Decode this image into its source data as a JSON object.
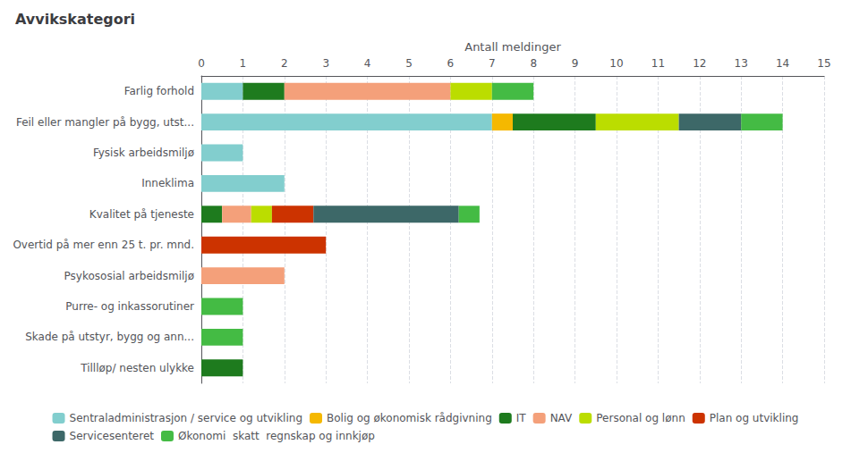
{
  "chart_data": {
    "type": "bar",
    "orientation": "horizontal",
    "stacked": true,
    "title": "Avvikskategori",
    "xlabel": "Antall meldinger",
    "categories": [
      "Farlig forhold",
      "Feil eller mangler på bygg, utst...",
      "Fysisk arbeidsmiljø",
      "Inneklima",
      "Kvalitet på tjeneste",
      "Overtid på mer enn 25 t. pr. mnd.",
      "Psykososial arbeidsmiljø",
      "Purre- og inkassorutiner",
      "Skade på utstyr, bygg og ann...",
      "Tillløp/ nesten ulykke"
    ],
    "series": [
      {
        "name": "Sentraladministrasjon / service og utvikling",
        "color": "#82CECE",
        "values": [
          1,
          7,
          1,
          2,
          0,
          0,
          0,
          0,
          0,
          0
        ]
      },
      {
        "name": "Bolig og økonomisk rådgivning",
        "color": "#F5B800",
        "values": [
          0,
          0.5,
          0,
          0,
          0,
          0,
          0,
          0,
          0,
          0
        ]
      },
      {
        "name": "IT",
        "color": "#1E7B1E",
        "values": [
          1,
          2,
          0,
          0,
          0.5,
          0,
          0,
          0,
          0,
          1
        ]
      },
      {
        "name": "NAV",
        "color": "#F4A07A",
        "values": [
          4,
          0,
          0,
          0,
          0.7,
          0,
          2,
          0,
          0,
          0
        ]
      },
      {
        "name": "Personal og lønn",
        "color": "#BBDD00",
        "values": [
          1,
          2,
          0,
          0,
          0.5,
          0,
          0,
          0,
          0,
          0
        ]
      },
      {
        "name": "Plan og utvikling",
        "color": "#CC3300",
        "values": [
          0,
          0,
          0,
          0,
          1,
          3,
          0,
          0,
          0,
          0
        ]
      },
      {
        "name": "Servicesenteret",
        "color": "#3D6868",
        "values": [
          0,
          1.5,
          0,
          0,
          3.5,
          0,
          0,
          0,
          0,
          0
        ]
      },
      {
        "name": "Økonomi  skatt  regnskap og innkjøp",
        "color": "#44BB44",
        "values": [
          1,
          1,
          0,
          0,
          0.5,
          0,
          0,
          1,
          1,
          0
        ]
      }
    ],
    "xlim": [
      0,
      15
    ],
    "xticks": [
      0,
      1,
      2,
      3,
      4,
      5,
      6,
      7,
      8,
      9,
      10,
      11,
      12,
      13,
      14,
      15
    ],
    "grid": true,
    "legend": "bottom"
  }
}
